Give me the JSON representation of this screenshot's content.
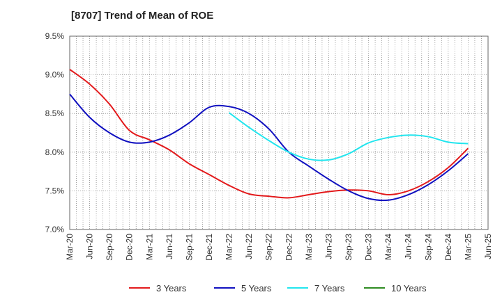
{
  "chart_data": {
    "type": "line",
    "title": "[8707]  Trend of Mean of ROE",
    "xlabel": "",
    "ylabel": "",
    "x_ticks": [
      "Mar-20",
      "Jun-20",
      "Sep-20",
      "Dec-20",
      "Mar-21",
      "Jun-21",
      "Sep-21",
      "Dec-21",
      "Mar-22",
      "Jun-22",
      "Sep-22",
      "Dec-22",
      "Mar-23",
      "Jun-23",
      "Sep-23",
      "Dec-23",
      "Mar-24",
      "Jun-24",
      "Sep-24",
      "Dec-24",
      "Mar-25",
      "Jun-25"
    ],
    "y_ticks": [
      "7.0%",
      "7.5%",
      "8.0%",
      "8.5%",
      "9.0%",
      "9.5%"
    ],
    "ylim": [
      7.0,
      9.5
    ],
    "grid": true,
    "legend_position": "bottom",
    "series": [
      {
        "name": "3 Years",
        "color": "#e31a1c",
        "x": [
          "Mar-20",
          "Jun-20",
          "Sep-20",
          "Dec-20",
          "Mar-21",
          "Jun-21",
          "Sep-21",
          "Dec-21",
          "Mar-22",
          "Jun-22",
          "Sep-22",
          "Dec-22",
          "Mar-23",
          "Jun-23",
          "Sep-23",
          "Dec-23",
          "Mar-24",
          "Jun-24",
          "Sep-24",
          "Dec-24",
          "Mar-25"
        ],
        "values": [
          9.07,
          8.88,
          8.62,
          8.28,
          8.16,
          8.03,
          7.85,
          7.71,
          7.57,
          7.46,
          7.43,
          7.41,
          7.45,
          7.49,
          7.51,
          7.5,
          7.45,
          7.5,
          7.62,
          7.8,
          8.05
        ]
      },
      {
        "name": "5 Years",
        "color": "#1010c0",
        "x": [
          "Mar-20",
          "Jun-20",
          "Sep-20",
          "Dec-20",
          "Mar-21",
          "Jun-21",
          "Sep-21",
          "Dec-21",
          "Mar-22",
          "Jun-22",
          "Sep-22",
          "Dec-22",
          "Mar-23",
          "Jun-23",
          "Sep-23",
          "Dec-23",
          "Mar-24",
          "Jun-24",
          "Sep-24",
          "Dec-24",
          "Mar-25"
        ],
        "values": [
          8.75,
          8.45,
          8.25,
          8.13,
          8.13,
          8.22,
          8.38,
          8.58,
          8.59,
          8.5,
          8.3,
          8.0,
          7.82,
          7.65,
          7.5,
          7.4,
          7.38,
          7.45,
          7.58,
          7.76,
          7.98
        ]
      },
      {
        "name": "7 Years",
        "color": "#22e5ee",
        "x": [
          "Mar-22",
          "Jun-22",
          "Sep-22",
          "Dec-22",
          "Mar-23",
          "Jun-23",
          "Sep-23",
          "Dec-23",
          "Mar-24",
          "Jun-24",
          "Sep-24",
          "Dec-24",
          "Mar-25"
        ],
        "values": [
          8.51,
          8.32,
          8.15,
          8.0,
          7.91,
          7.9,
          7.98,
          8.12,
          8.19,
          8.22,
          8.2,
          8.13,
          8.11
        ]
      },
      {
        "name": "10 Years",
        "color": "#2e8b22",
        "x": [],
        "values": []
      }
    ]
  }
}
